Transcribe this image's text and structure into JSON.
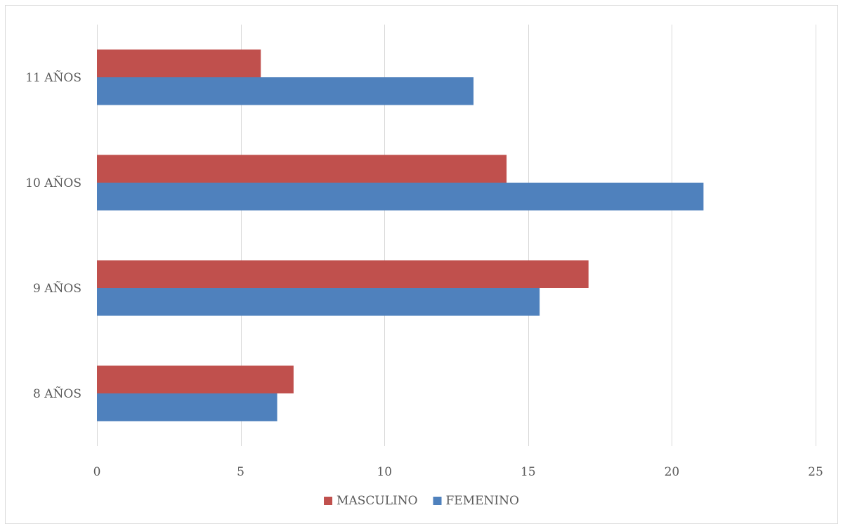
{
  "chart_data": {
    "type": "bar",
    "orientation": "horizontal",
    "categories": [
      "8 AÑOS",
      "9 AÑOS",
      "10 AÑOS",
      "11 AÑOS"
    ],
    "series": [
      {
        "name": "MASCULINO",
        "color": "#c0504d",
        "values": [
          6.84,
          17.1,
          14.25,
          5.7
        ]
      },
      {
        "name": "FEMENINO",
        "color": "#4f81bd",
        "values": [
          6.27,
          15.4,
          21.1,
          13.1
        ]
      }
    ],
    "xlim": [
      0,
      25
    ],
    "xticks": [
      "0",
      "5",
      "10",
      "15",
      "20",
      "25"
    ],
    "xtick_values": [
      0,
      5,
      10,
      15,
      20,
      25
    ],
    "grid": "vertical",
    "legend": "bottom-center",
    "title": "",
    "xlabel": "",
    "ylabel": ""
  }
}
